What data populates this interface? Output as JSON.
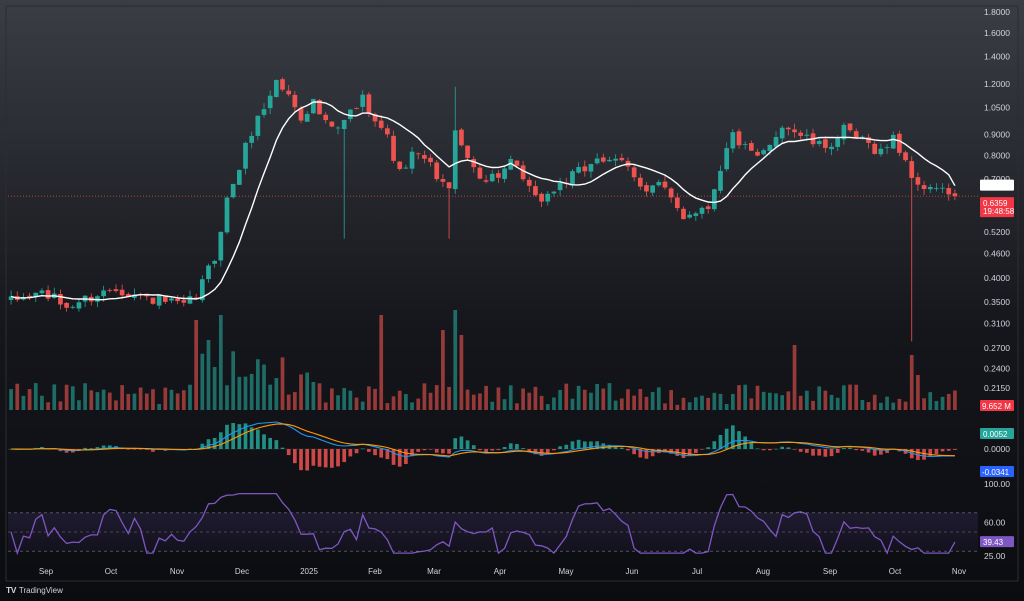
{
  "colors": {
    "up": "#26a69a",
    "down": "#ef5350",
    "ma": "#ffffff",
    "macd_line": "#2196f3",
    "signal_line": "#ff9800",
    "rsi": "#7e57c2",
    "badge_ma": "#ffffff",
    "badge_price": "#f23645",
    "badge_macd": "#26a69a",
    "badge_signal": "#2962ff",
    "badge_rsi": "#7e57c2"
  },
  "branding": {
    "logo_icon": "tradingview-icon",
    "name": "TradingView"
  },
  "chart_data": [
    {
      "type": "candlestick",
      "scale": "log",
      "ylim": [
        0.19,
        1.8
      ],
      "y_ticks": [
        "1.8000",
        "1.6000",
        "1.4000",
        "1.2000",
        "1.0500",
        "0.9000",
        "0.8000",
        "0.7000",
        "0.5200",
        "0.4600",
        "0.4000",
        "0.3500",
        "0.3100",
        "0.2700",
        "0.2400",
        "0.2150",
        "0.1930"
      ],
      "x_ticks": [
        "Sep",
        "Oct",
        "Nov",
        "Dec",
        "2025",
        "Feb",
        "Mar",
        "Apr",
        "May",
        "Jun",
        "Jul",
        "Aug",
        "Sep",
        "Oct",
        "Nov"
      ],
      "anchors": [
        [
          0,
          0.35
        ],
        [
          5,
          0.37
        ],
        [
          9,
          0.34
        ],
        [
          13,
          0.36
        ],
        [
          17,
          0.38
        ],
        [
          21,
          0.36
        ],
        [
          25,
          0.35
        ],
        [
          28,
          0.34
        ],
        [
          30,
          0.36
        ],
        [
          33,
          0.45
        ],
        [
          35,
          0.62
        ],
        [
          37,
          0.75
        ],
        [
          39,
          0.92
        ],
        [
          41,
          1.05
        ],
        [
          43,
          1.22
        ],
        [
          45,
          1.12
        ],
        [
          47,
          1.0
        ],
        [
          49,
          1.08
        ],
        [
          51,
          0.95
        ],
        [
          53,
          0.92
        ],
        [
          55,
          1.02
        ],
        [
          57,
          1.1
        ],
        [
          59,
          1.0
        ],
        [
          61,
          0.88
        ],
        [
          63,
          0.72
        ],
        [
          65,
          0.8
        ],
        [
          67,
          0.78
        ],
        [
          69,
          0.72
        ],
        [
          71,
          0.65
        ],
        [
          72,
          0.95
        ],
        [
          73,
          0.82
        ],
        [
          75,
          0.75
        ],
        [
          77,
          0.7
        ],
        [
          79,
          0.72
        ],
        [
          81,
          0.76
        ],
        [
          83,
          0.7
        ],
        [
          85,
          0.62
        ],
        [
          87,
          0.64
        ],
        [
          89,
          0.68
        ],
        [
          91,
          0.71
        ],
        [
          93,
          0.74
        ],
        [
          95,
          0.8
        ],
        [
          97,
          0.76
        ],
        [
          99,
          0.77
        ],
        [
          101,
          0.72
        ],
        [
          103,
          0.66
        ],
        [
          105,
          0.68
        ],
        [
          107,
          0.62
        ],
        [
          109,
          0.57
        ],
        [
          111,
          0.59
        ],
        [
          113,
          0.6
        ],
        [
          115,
          0.75
        ],
        [
          117,
          0.9
        ],
        [
          119,
          0.83
        ],
        [
          121,
          0.78
        ],
        [
          123,
          0.84
        ],
        [
          125,
          0.96
        ],
        [
          127,
          0.92
        ],
        [
          129,
          0.88
        ],
        [
          131,
          0.84
        ],
        [
          133,
          0.86
        ],
        [
          135,
          0.92
        ],
        [
          137,
          0.88
        ],
        [
          139,
          0.85
        ],
        [
          141,
          0.82
        ],
        [
          143,
          0.88
        ],
        [
          145,
          0.78
        ],
        [
          147,
          0.66
        ],
        [
          149,
          0.68
        ],
        [
          151,
          0.65
        ],
        [
          153,
          0.65
        ]
      ],
      "last_index": 153,
      "ma_value": "0.6748",
      "price_value": "0.6359",
      "countdown": "19:48:58"
    },
    {
      "type": "bar",
      "name": "volume",
      "value_label": "9.652 M",
      "spikes": [
        [
          30,
          0.9
        ],
        [
          32,
          0.7
        ],
        [
          34,
          0.95
        ],
        [
          60,
          0.95
        ],
        [
          70,
          0.8
        ],
        [
          72,
          1.0
        ],
        [
          73,
          0.75
        ],
        [
          127,
          0.65
        ],
        [
          146,
          0.55
        ],
        [
          147,
          0.35
        ]
      ]
    },
    {
      "type": "bar",
      "name": "macd",
      "y_ticks": [
        "0.0000"
      ],
      "histogram_label": "0.0052",
      "signal_label": "-0.0341"
    },
    {
      "type": "line",
      "name": "rsi",
      "ylim": [
        25,
        100
      ],
      "y_ticks": [
        "100.00",
        "60.00",
        "25.00"
      ],
      "levels": [
        70,
        50,
        30
      ],
      "value": 39.43,
      "value_label": "39.43"
    }
  ]
}
